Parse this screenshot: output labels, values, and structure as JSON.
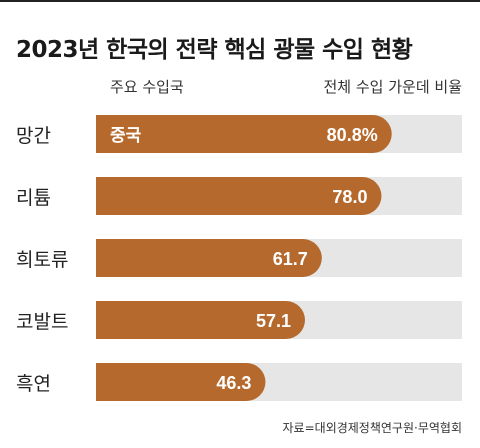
{
  "title": "2023년 한국의 전략 핵심 광물 수입 현황",
  "column_headers": {
    "left": "주요 수입국",
    "right": "전체 수입 가운데 비율"
  },
  "source": "자료=대외경제정책연구원·무역협회",
  "colors": {
    "bar": "#b5692c",
    "track": "#e6e6e6",
    "value_text": "#ffffff"
  },
  "chart_data": {
    "type": "bar",
    "orientation": "horizontal",
    "categories": [
      "망간",
      "리튬",
      "희토류",
      "코발트",
      "흑연"
    ],
    "values": [
      80.8,
      78.0,
      61.7,
      57.1,
      46.3
    ],
    "value_labels": [
      "80.8%",
      "78.0",
      "61.7",
      "57.1",
      "46.3"
    ],
    "bar_annotations": [
      "중국",
      "",
      "",
      "",
      ""
    ],
    "xlim": [
      0,
      100
    ],
    "title": "2023년 한국의 전략 핵심 광물 수입 현황",
    "xlabel": "전체 수입 가운데 비율",
    "ylabel": ""
  }
}
